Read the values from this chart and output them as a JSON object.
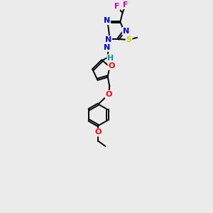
{
  "bg_color": "#ebebeb",
  "bond_color": "#000000",
  "atom_colors": {
    "F": "#cc00cc",
    "N": "#0000ff",
    "S": "#cccc00",
    "O": "#ff0000",
    "H": "#009999",
    "C": "#000000"
  },
  "bond_width": 1.4,
  "figsize": [
    3.0,
    3.0
  ],
  "dpi": 100
}
